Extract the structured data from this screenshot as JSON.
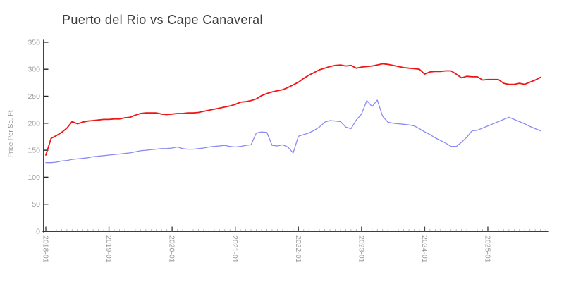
{
  "title": "Puerto del Rio vs Cape Canaveral",
  "colors": {
    "series_red": "#f01515",
    "series_blue": "#8a8af2",
    "axis": "#222222",
    "tick_label": "#9b9b9b",
    "minor_tick": "#b5b5b5",
    "title_text": "#3d3d3d",
    "axis_label": "#8f8f8f",
    "background": "#ffffff"
  },
  "chart_data": {
    "type": "line",
    "title": "Puerto del Rio vs Cape Canaveral",
    "xlabel": "",
    "ylabel": "Price Per Sq. Ft",
    "ylim": [
      0,
      350
    ],
    "grid": false,
    "legend": "none",
    "y_ticks": [
      0,
      50,
      100,
      150,
      200,
      250,
      300,
      350
    ],
    "x_tick_labels": [
      "2018-01",
      "2019-01",
      "2020-01",
      "2021-01",
      "2022-01",
      "2023-01",
      "2024-01",
      "2025-01"
    ],
    "x": [
      "2018-01",
      "2018-02",
      "2018-03",
      "2018-04",
      "2018-05",
      "2018-06",
      "2018-07",
      "2018-08",
      "2018-09",
      "2018-10",
      "2018-11",
      "2018-12",
      "2019-01",
      "2019-02",
      "2019-03",
      "2019-04",
      "2019-05",
      "2019-06",
      "2019-07",
      "2019-08",
      "2019-09",
      "2019-10",
      "2019-11",
      "2019-12",
      "2020-01",
      "2020-02",
      "2020-03",
      "2020-04",
      "2020-05",
      "2020-06",
      "2020-07",
      "2020-08",
      "2020-09",
      "2020-10",
      "2020-11",
      "2020-12",
      "2021-01",
      "2021-02",
      "2021-03",
      "2021-04",
      "2021-05",
      "2021-06",
      "2021-07",
      "2021-08",
      "2021-09",
      "2021-10",
      "2021-11",
      "2021-12",
      "2022-01",
      "2022-02",
      "2022-03",
      "2022-04",
      "2022-05",
      "2022-06",
      "2022-07",
      "2022-08",
      "2022-09",
      "2022-10",
      "2022-11",
      "2022-12",
      "2023-01",
      "2023-02",
      "2023-03",
      "2023-04",
      "2023-05",
      "2023-06",
      "2023-07",
      "2023-08",
      "2023-09",
      "2023-10",
      "2023-11",
      "2023-12",
      "2024-01",
      "2024-02",
      "2024-03",
      "2024-04",
      "2024-05",
      "2024-06",
      "2024-07",
      "2024-08",
      "2024-09",
      "2024-10",
      "2024-11",
      "2024-12",
      "2025-01",
      "2025-02",
      "2025-03",
      "2025-04",
      "2025-05",
      "2025-06",
      "2025-07",
      "2025-08",
      "2025-09",
      "2025-10",
      "2025-11"
    ],
    "series": [
      {
        "name": "Puerto del Rio",
        "color": "#f01515",
        "values": [
          141,
          172,
          177,
          183,
          191,
          203,
          199,
          202,
          204,
          205,
          206,
          207,
          207,
          208,
          208,
          210,
          211,
          215,
          218,
          219,
          219,
          219,
          217,
          216,
          217,
          218,
          218,
          219,
          219,
          220,
          222,
          224,
          226,
          228,
          230,
          232,
          235,
          239,
          240,
          242,
          245,
          251,
          255,
          258,
          260,
          262,
          266,
          271,
          276,
          283,
          289,
          294,
          299,
          302,
          305,
          307,
          308,
          306,
          307,
          302,
          304,
          305,
          306,
          308,
          310,
          309,
          307,
          305,
          303,
          302,
          301,
          300,
          291,
          295,
          296,
          296,
          297,
          297,
          291,
          284,
          287,
          286,
          286,
          280,
          281,
          281,
          281,
          274,
          272,
          272,
          274,
          272,
          276,
          280,
          285
        ]
      },
      {
        "name": "Cape Canaveral",
        "color": "#8a8af2",
        "values": [
          127,
          127,
          128,
          130,
          131,
          133,
          134,
          135,
          136,
          138,
          139,
          140,
          141,
          142,
          143,
          144,
          145,
          147,
          149,
          150,
          151,
          152,
          153,
          153,
          154,
          156,
          153,
          152,
          152,
          153,
          154,
          156,
          157,
          158,
          159,
          157,
          156,
          157,
          159,
          160,
          182,
          184,
          183,
          159,
          158,
          160,
          156,
          145,
          176,
          179,
          182,
          187,
          193,
          202,
          205,
          204,
          203,
          193,
          190,
          206,
          217,
          242,
          231,
          243,
          213,
          202,
          200,
          199,
          198,
          197,
          195,
          190,
          184,
          179,
          173,
          168,
          163,
          157,
          157,
          165,
          174,
          186,
          187,
          191,
          195,
          199,
          203,
          207,
          211,
          207,
          203,
          199,
          194,
          190,
          186
        ]
      }
    ]
  }
}
